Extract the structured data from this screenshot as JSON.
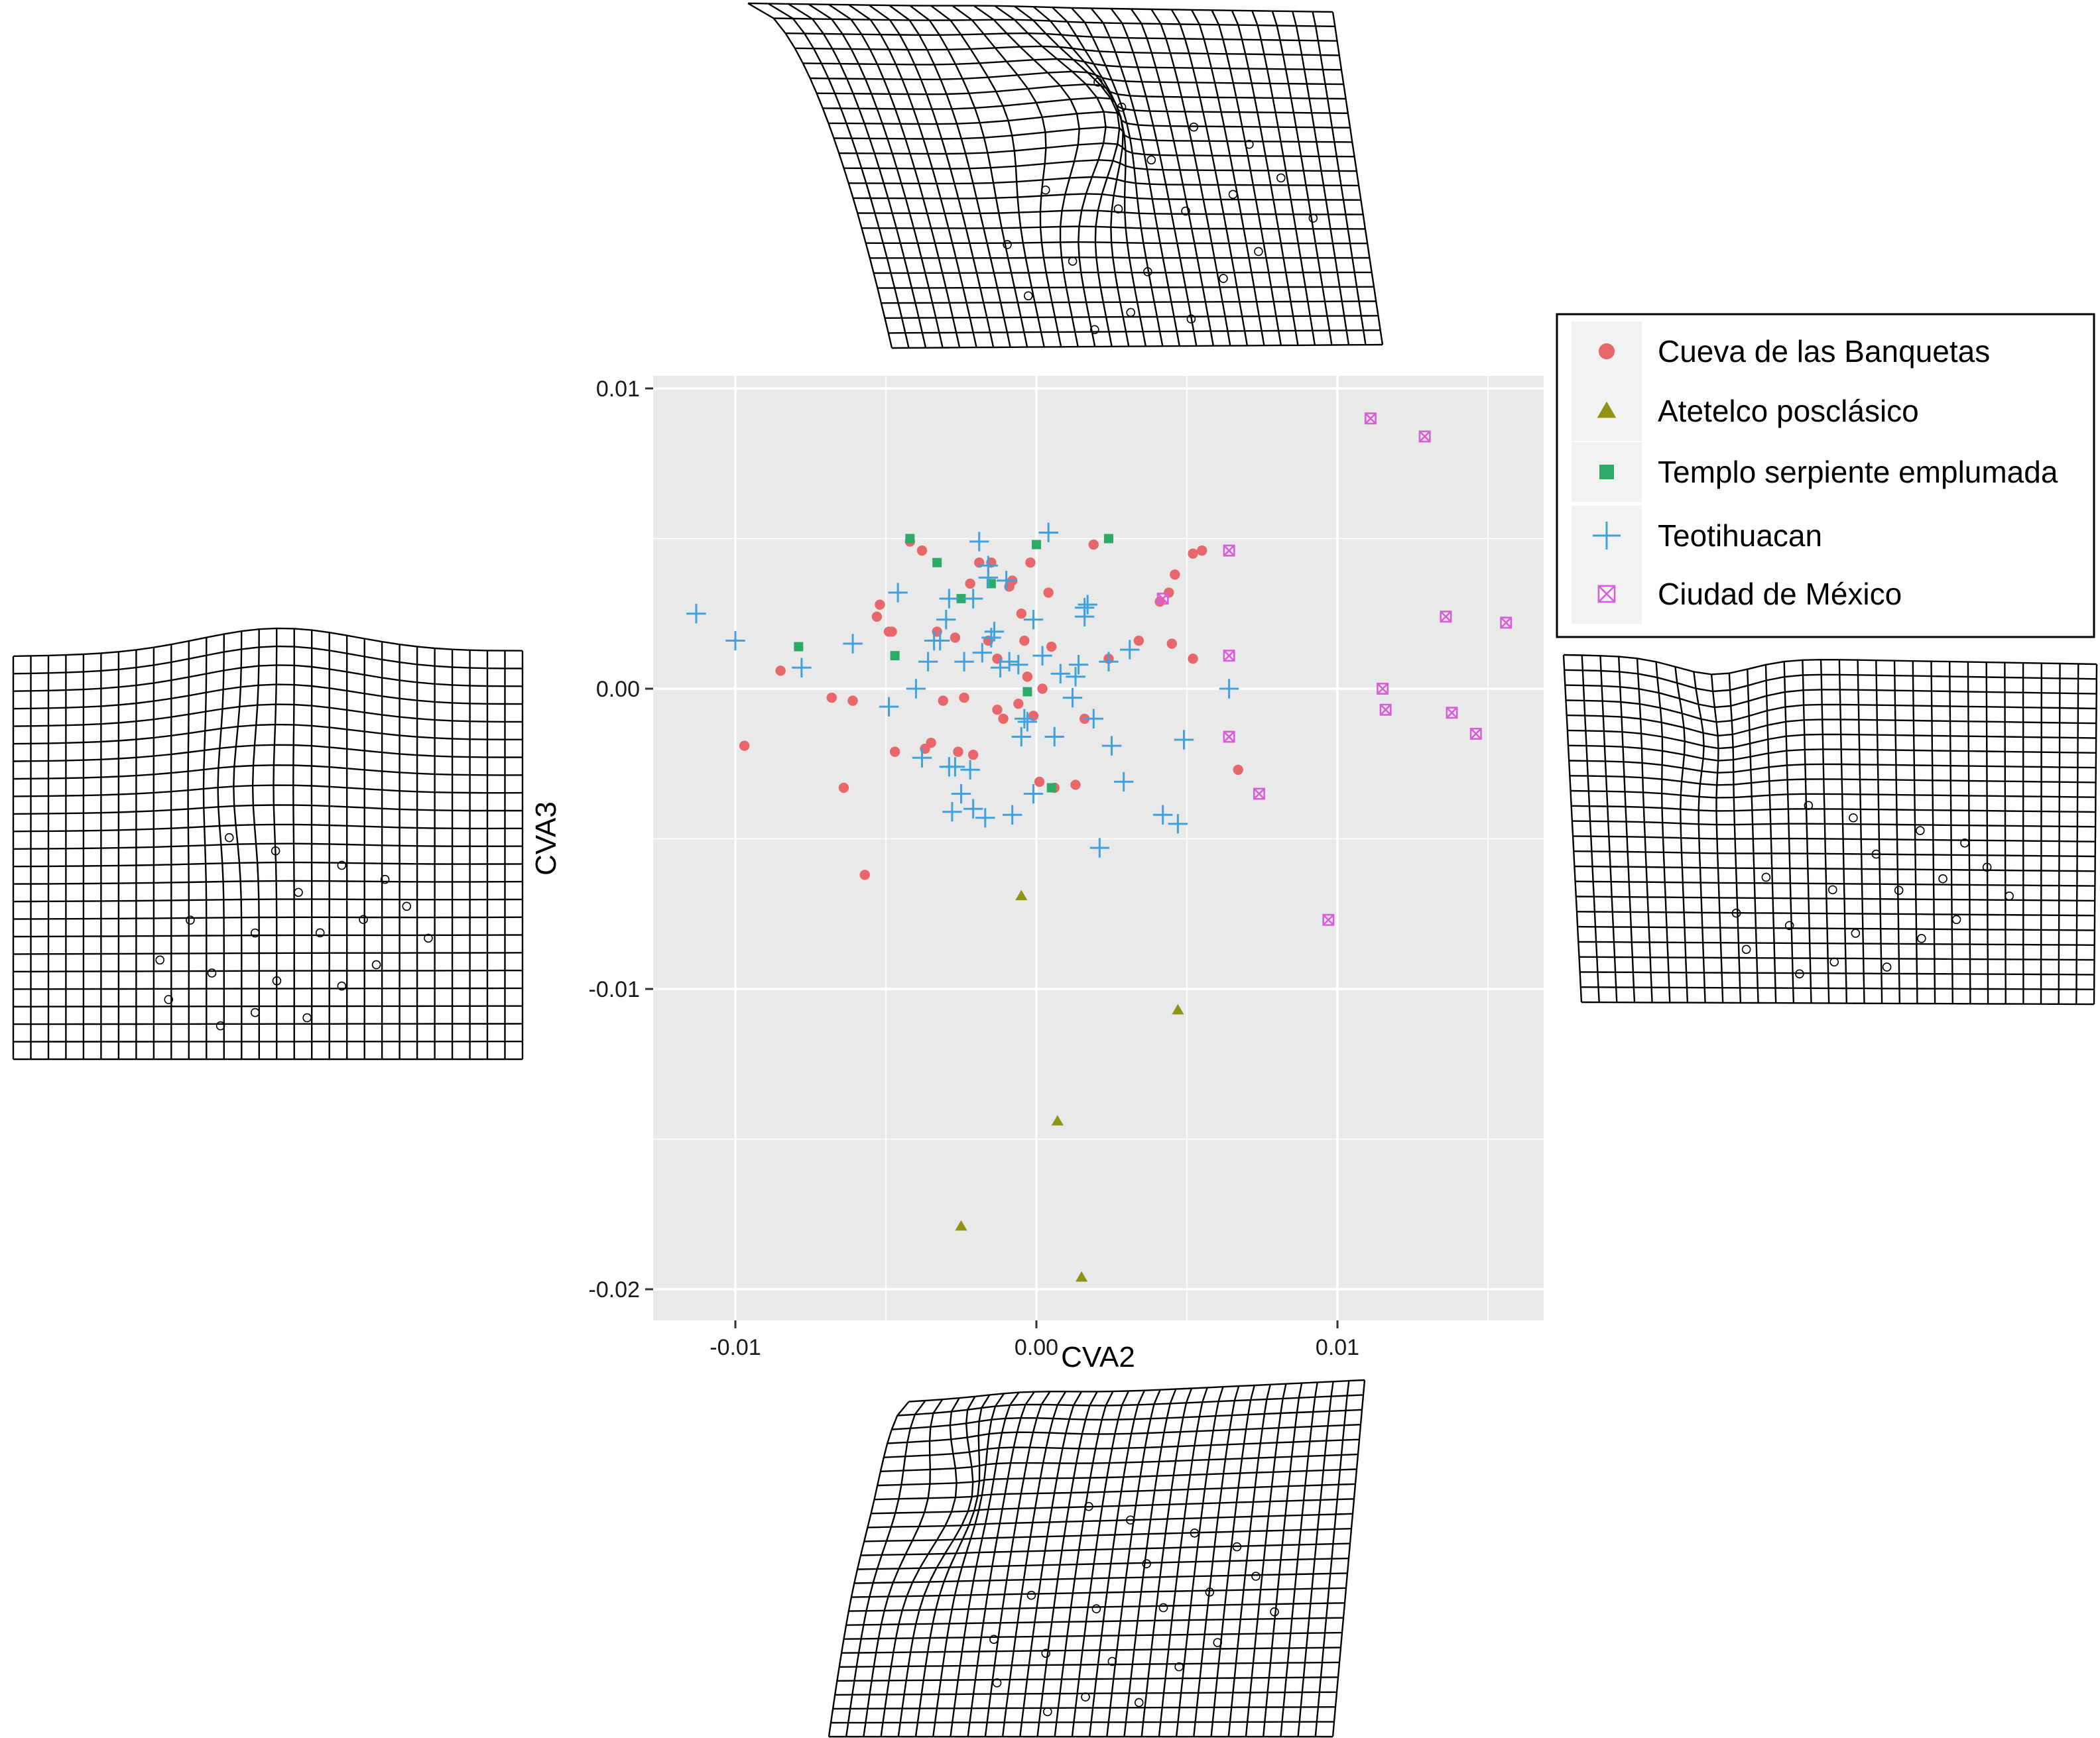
{
  "chart_data": {
    "type": "scatter",
    "xlabel": "CVA2",
    "ylabel": "CVA3",
    "xlim": [
      -0.0125,
      0.017
    ],
    "ylim": [
      -0.021,
      0.01
    ],
    "xticks": [
      -0.01,
      0.0,
      0.01
    ],
    "yticks": [
      0.01,
      0.0,
      -0.01,
      -0.02
    ],
    "xtick_labels": [
      "-0.01",
      "0.00",
      "0.01"
    ],
    "ytick_labels": [
      "0.01",
      "0.00",
      "-0.01",
      "-0.02"
    ],
    "grid": true,
    "legend_position": "top-right",
    "series": [
      {
        "name": "Cueva de las Banquetas",
        "marker": "circle",
        "color": "#e8676a",
        "points": [
          [
            -0.0097,
            -0.0019
          ],
          [
            -0.0085,
            0.0006
          ],
          [
            -0.0068,
            -0.0003
          ],
          [
            -0.0064,
            -0.0033
          ],
          [
            -0.0061,
            -0.0004
          ],
          [
            -0.0057,
            -0.0062
          ],
          [
            -0.0052,
            0.0028
          ],
          [
            -0.0053,
            0.0024
          ],
          [
            -0.0049,
            0.0019
          ],
          [
            -0.0048,
            0.0019
          ],
          [
            -0.0047,
            -0.0021
          ],
          [
            -0.0042,
            0.0049
          ],
          [
            -0.0038,
            0.0046
          ],
          [
            -0.0037,
            -0.002
          ],
          [
            -0.0035,
            -0.0018
          ],
          [
            -0.0033,
            0.0019
          ],
          [
            -0.0031,
            -0.0004
          ],
          [
            -0.0027,
            0.0017
          ],
          [
            -0.0026,
            -0.0021
          ],
          [
            -0.0024,
            -0.0003
          ],
          [
            -0.0022,
            0.0035
          ],
          [
            -0.0021,
            -0.0022
          ],
          [
            -0.0019,
            0.0042
          ],
          [
            -0.0016,
            0.0016
          ],
          [
            -0.0015,
            0.0042
          ],
          [
            -0.0013,
            0.001
          ],
          [
            -0.0013,
            -0.0007
          ],
          [
            -0.0011,
            -0.001
          ],
          [
            -0.0009,
            0.0034
          ],
          [
            -0.0008,
            0.0036
          ],
          [
            -0.0006,
            -0.0005
          ],
          [
            -0.0005,
            0.0025
          ],
          [
            -0.0004,
            0.0016
          ],
          [
            -0.0003,
            0.0004
          ],
          [
            -0.0002,
            0.0042
          ],
          [
            -0.0001,
            -0.0009
          ],
          [
            0.0001,
            -0.0031
          ],
          [
            0.0002,
            0.0
          ],
          [
            0.0004,
            0.0032
          ],
          [
            0.0005,
            0.0014
          ],
          [
            0.0006,
            -0.0033
          ],
          [
            0.0013,
            -0.0032
          ],
          [
            0.0016,
            -0.001
          ],
          [
            0.0019,
            0.0048
          ],
          [
            0.0024,
            0.001
          ],
          [
            0.0034,
            0.0016
          ],
          [
            0.0041,
            0.0029
          ],
          [
            0.0044,
            0.0032
          ],
          [
            0.0046,
            0.0038
          ],
          [
            0.0045,
            0.0015
          ],
          [
            0.0052,
            0.001
          ],
          [
            0.0055,
            0.0046
          ],
          [
            0.0067,
            -0.0027
          ],
          [
            0.0052,
            0.0045
          ]
        ]
      },
      {
        "name": "Atetelco posclásico",
        "marker": "triangle",
        "color": "#8f9417",
        "points": [
          [
            -0.0025,
            -0.0179
          ],
          [
            -0.0005,
            -0.0069
          ],
          [
            0.0007,
            -0.0144
          ],
          [
            0.0015,
            -0.0196
          ],
          [
            0.0047,
            -0.0107
          ]
        ]
      },
      {
        "name": "Templo serpiente emplumada",
        "marker": "square",
        "color": "#2bab66",
        "points": [
          [
            -0.0079,
            0.0014
          ],
          [
            -0.0047,
            0.0011
          ],
          [
            -0.0042,
            0.005
          ],
          [
            -0.0033,
            0.0042
          ],
          [
            -0.0025,
            0.003
          ],
          [
            -0.0015,
            0.0035
          ],
          [
            -0.0003,
            -0.0001
          ],
          [
            0.0,
            0.0048
          ],
          [
            0.0005,
            -0.0033
          ],
          [
            0.0024,
            0.005
          ]
        ]
      },
      {
        "name": "Teotihuacan",
        "marker": "plus",
        "color": "#3fa2df",
        "points": [
          [
            -0.0113,
            0.0025
          ],
          [
            -0.01,
            0.0016
          ],
          [
            -0.0078,
            0.0007
          ],
          [
            -0.0061,
            0.0015
          ],
          [
            -0.0049,
            -0.0006
          ],
          [
            -0.0046,
            0.0032
          ],
          [
            -0.004,
            0.0
          ],
          [
            -0.0038,
            -0.0023
          ],
          [
            -0.0036,
            0.0009
          ],
          [
            -0.0034,
            0.0016
          ],
          [
            -0.0032,
            0.0016
          ],
          [
            -0.003,
            0.0023
          ],
          [
            -0.0029,
            0.003
          ],
          [
            -0.0029,
            -0.0026
          ],
          [
            -0.0028,
            -0.0041
          ],
          [
            -0.0027,
            -0.0026
          ],
          [
            -0.0025,
            -0.0035
          ],
          [
            -0.0024,
            0.0009
          ],
          [
            -0.0022,
            -0.0027
          ],
          [
            -0.0021,
            0.003
          ],
          [
            -0.0021,
            -0.004
          ],
          [
            -0.0019,
            0.0049
          ],
          [
            -0.0018,
            0.0012
          ],
          [
            -0.0017,
            -0.0043
          ],
          [
            -0.0016,
            0.0037
          ],
          [
            -0.0016,
            0.0041
          ],
          [
            -0.0015,
            0.0017
          ],
          [
            -0.0014,
            0.0019
          ],
          [
            -0.0012,
            0.0007
          ],
          [
            -0.001,
            0.0036
          ],
          [
            -0.0009,
            0.0009
          ],
          [
            -0.0008,
            -0.0042
          ],
          [
            -0.0006,
            0.0008
          ],
          [
            -0.0004,
            -0.001
          ],
          [
            -0.0003,
            -0.0011
          ],
          [
            -0.0001,
            0.0023
          ],
          [
            -0.0001,
            -0.0035
          ],
          [
            0.0002,
            0.0011
          ],
          [
            0.0004,
            0.0052
          ],
          [
            0.0006,
            -0.0016
          ],
          [
            0.0008,
            0.0005
          ],
          [
            0.0012,
            -0.0003
          ],
          [
            0.0013,
            0.0004
          ],
          [
            0.0014,
            0.0008
          ],
          [
            0.0016,
            0.0024
          ],
          [
            0.0017,
            0.0028
          ],
          [
            0.0019,
            -0.001
          ],
          [
            0.0021,
            -0.0053
          ],
          [
            0.0024,
            0.0009
          ],
          [
            0.0025,
            -0.0019
          ],
          [
            0.0029,
            -0.0031
          ],
          [
            0.0031,
            0.0013
          ],
          [
            0.0042,
            -0.0042
          ],
          [
            0.0047,
            -0.0045
          ],
          [
            0.0049,
            -0.0017
          ],
          [
            0.0064,
            0.0
          ],
          [
            0.0016,
            0.0027
          ],
          [
            -0.0005,
            -0.0016
          ]
        ]
      },
      {
        "name": "Ciudad de México",
        "marker": "square-cross",
        "color": "#d760d8",
        "points": [
          [
            0.0042,
            0.003
          ],
          [
            0.0064,
            0.0046
          ],
          [
            0.0064,
            0.0011
          ],
          [
            0.0064,
            -0.0016
          ],
          [
            0.0074,
            -0.0035
          ],
          [
            0.0097,
            -0.0077
          ],
          [
            0.0111,
            0.009
          ],
          [
            0.0115,
            0.0
          ],
          [
            0.0116,
            -0.0007
          ],
          [
            0.0129,
            0.0084
          ],
          [
            0.0136,
            0.0024
          ],
          [
            0.0138,
            -0.0008
          ],
          [
            0.0146,
            -0.0015
          ],
          [
            0.0156,
            0.0022
          ]
        ]
      }
    ]
  },
  "deformation_grids": {
    "top": "warp-grid-top",
    "left": "warp-grid-left",
    "right": "warp-grid-right",
    "bottom": "warp-grid-bottom"
  }
}
